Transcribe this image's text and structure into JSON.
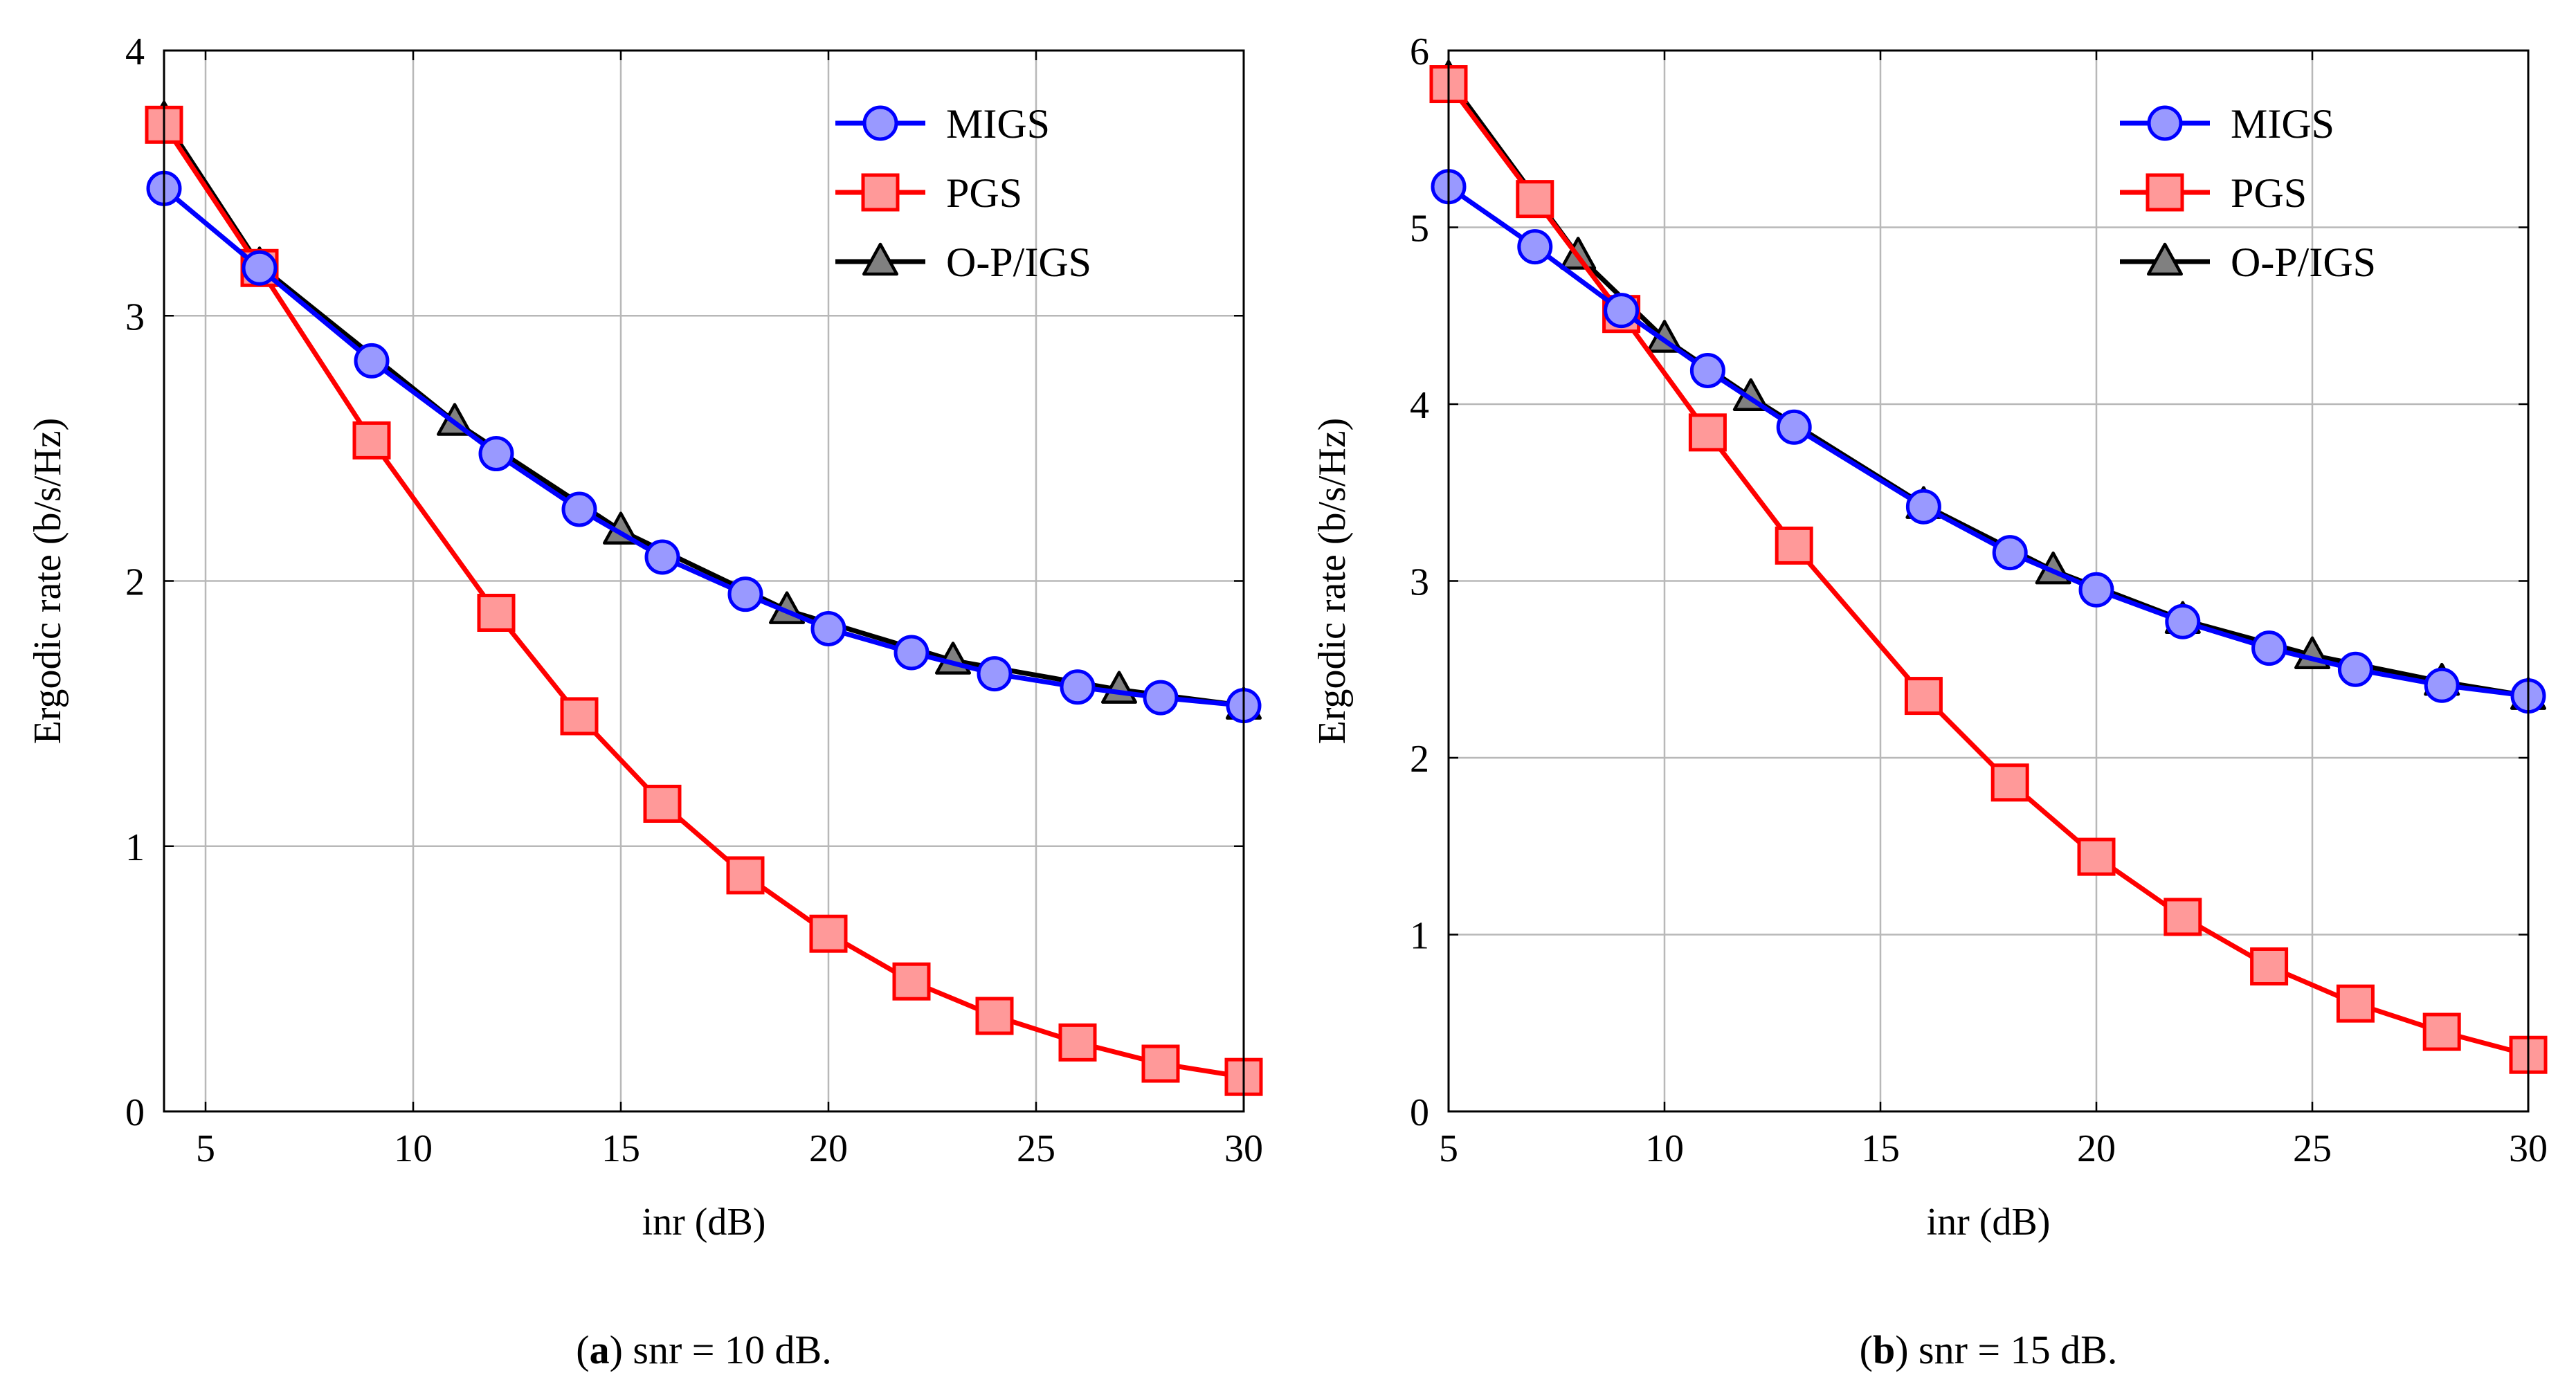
{
  "colors": {
    "migs_line": "#0000ff",
    "migs_marker_fill": "#9999ff",
    "pgs_line": "#ff0000",
    "pgs_marker_fill": "#ff9999",
    "ogs_line": "#000000",
    "ogs_marker_fill": "#808080",
    "grid": "#b8b8b8"
  },
  "chart_data": [
    {
      "type": "line",
      "xlabel": "inr (dB)",
      "ylabel": "Ergodic rate (b/s/Hz)",
      "xlim": [
        4,
        30
      ],
      "ylim": [
        0,
        4
      ],
      "xticks": [
        5,
        10,
        15,
        20,
        25,
        30
      ],
      "yticks": [
        0,
        1,
        2,
        3,
        4
      ],
      "grid": true,
      "legend_position": "top-right",
      "caption": {
        "label": "a",
        "text": "snr = 10 dB."
      },
      "series": [
        {
          "name": "MIGS",
          "marker": "circle",
          "x": [
            4,
            6.3,
            9,
            12,
            14,
            16,
            18,
            20,
            22,
            24,
            26,
            28,
            30
          ],
          "values": [
            3.48,
            3.18,
            2.83,
            2.48,
            2.27,
            2.09,
            1.95,
            1.82,
            1.73,
            1.65,
            1.6,
            1.56,
            1.53
          ]
        },
        {
          "name": "PGS",
          "marker": "square",
          "x": [
            4,
            6.3,
            9,
            12,
            14,
            16,
            18,
            20,
            22,
            24,
            26,
            28,
            30
          ],
          "values": [
            3.72,
            3.18,
            2.53,
            1.88,
            1.49,
            1.16,
            0.89,
            0.67,
            0.49,
            0.36,
            0.26,
            0.18,
            0.13
          ]
        },
        {
          "name": "O-P/IGS",
          "marker": "triangle",
          "x": [
            4,
            6.3,
            11,
            15,
            19,
            23,
            27,
            30
          ],
          "values": [
            3.74,
            3.19,
            2.6,
            2.19,
            1.89,
            1.7,
            1.59,
            1.53
          ]
        }
      ]
    },
    {
      "type": "line",
      "xlabel": "inr (dB)",
      "ylabel": "Ergodic rate (b/s/Hz)",
      "xlim": [
        5,
        30
      ],
      "ylim": [
        0,
        6
      ],
      "xticks": [
        5,
        10,
        15,
        20,
        25,
        30
      ],
      "yticks": [
        0,
        1,
        2,
        3,
        4,
        5,
        6
      ],
      "grid": true,
      "legend_position": "top-right",
      "caption": {
        "label": "b",
        "text": "snr = 15 dB."
      },
      "series": [
        {
          "name": "MIGS",
          "marker": "circle",
          "x": [
            5,
            7,
            9,
            11,
            13,
            16,
            18,
            20,
            22,
            24,
            26,
            28,
            30
          ],
          "values": [
            5.23,
            4.89,
            4.53,
            4.19,
            3.87,
            3.42,
            3.16,
            2.95,
            2.77,
            2.62,
            2.5,
            2.41,
            2.35
          ]
        },
        {
          "name": "PGS",
          "marker": "square",
          "x": [
            5,
            7,
            9,
            11,
            13,
            16,
            18,
            20,
            22,
            24,
            26,
            28,
            30
          ],
          "values": [
            5.81,
            5.16,
            4.51,
            3.84,
            3.2,
            2.35,
            1.86,
            1.44,
            1.1,
            0.82,
            0.61,
            0.45,
            0.32
          ]
        },
        {
          "name": "O-P/IGS",
          "marker": "triangle",
          "x": [
            5,
            8,
            10,
            12,
            16,
            19,
            22,
            25,
            28,
            30
          ],
          "values": [
            5.84,
            4.84,
            4.37,
            4.04,
            3.43,
            3.06,
            2.78,
            2.58,
            2.43,
            2.35
          ]
        }
      ]
    }
  ]
}
